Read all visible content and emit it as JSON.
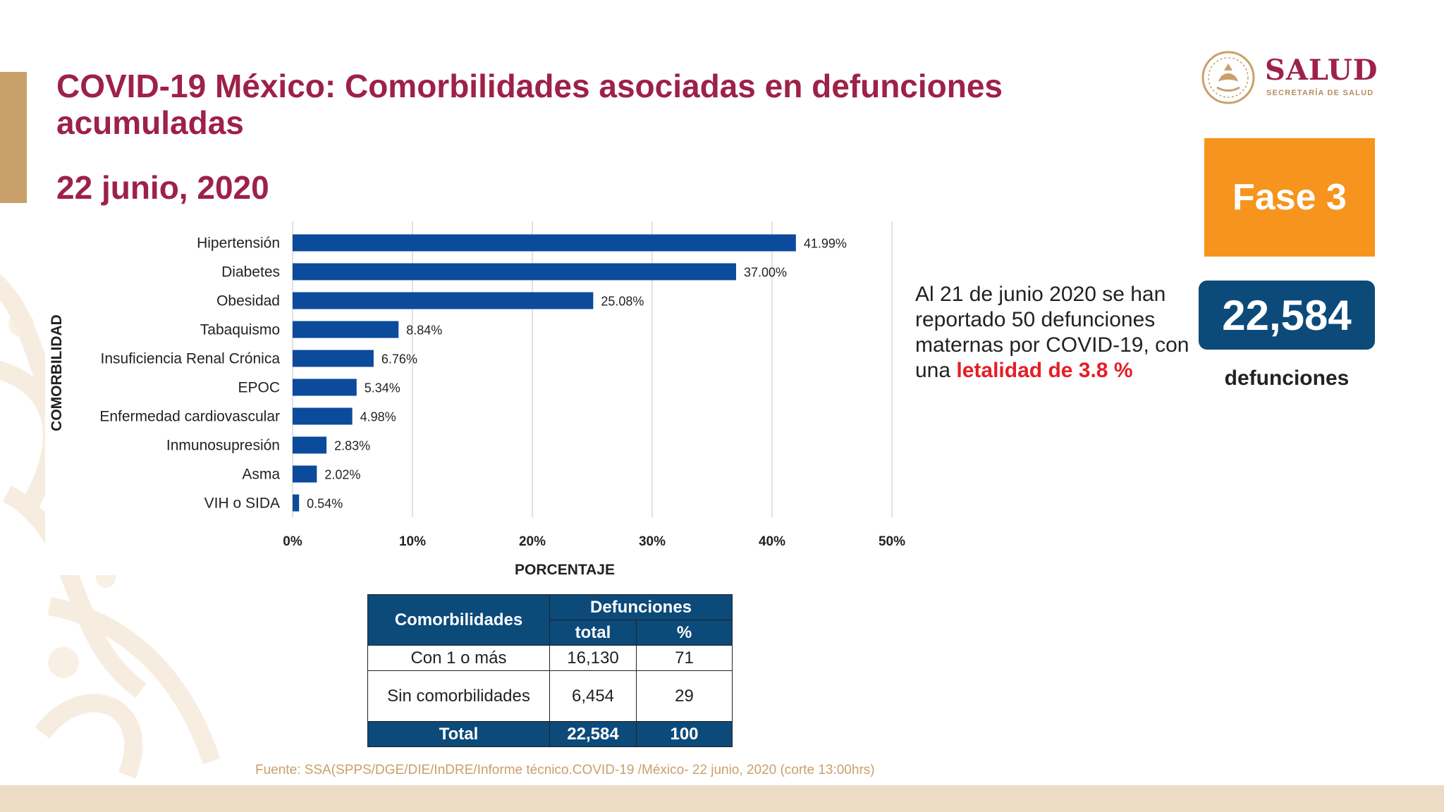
{
  "header": {
    "title": "COVID-19 México: Comorbilidades asociadas en defunciones acumuladas",
    "date": "22 junio, 2020"
  },
  "logo": {
    "word": "SALUD",
    "subtitle": "SECRETARÍA DE SALUD"
  },
  "phase": {
    "label": "Fase 3"
  },
  "deaths": {
    "value": "22,584",
    "label": "defunciones"
  },
  "maternal": {
    "text": "Al 21 de junio 2020 se han reportado 50 defunciones maternas por COVID-19, con una",
    "highlight": "letalidad de 3.8 %"
  },
  "chart_data": {
    "type": "bar",
    "orientation": "horizontal",
    "categories": [
      "Hipertensión",
      "Diabetes",
      "Obesidad",
      "Tabaquismo",
      "Insuficiencia Renal Crónica",
      "EPOC",
      "Enfermedad cardiovascular",
      "Inmunosupresión",
      "Asma",
      "VIH o SIDA"
    ],
    "values": [
      41.99,
      37.0,
      25.08,
      8.84,
      6.76,
      5.34,
      4.98,
      2.83,
      2.02,
      0.54
    ],
    "value_labels": [
      "41.99%",
      "37.00%",
      "25.08%",
      "8.84%",
      "6.76%",
      "5.34%",
      "4.98%",
      "2.83%",
      "2.02%",
      "0.54%"
    ],
    "xlabel": "PORCENTAJE",
    "ylabel": "COMORBILIDAD",
    "xlim": [
      0,
      50
    ],
    "xticks": [
      0,
      10,
      20,
      30,
      40,
      50
    ],
    "xtick_labels": [
      "0%",
      "10%",
      "20%",
      "30%",
      "40%",
      "50%"
    ],
    "grid": "vertical",
    "bar_color": "#0c4a9c"
  },
  "table": {
    "col_comorbidities": "Comorbilidades",
    "col_deaths": "Defunciones",
    "sub_total": "total",
    "sub_pct": "%",
    "rows": [
      {
        "label": "Con 1 o más",
        "total": "16,130",
        "pct": "71"
      },
      {
        "label": "Sin comorbilidades",
        "total": "6,454",
        "pct": "29"
      }
    ],
    "total_row": {
      "label": "Total",
      "total": "22,584",
      "pct": "100"
    }
  },
  "source": "Fuente: SSA(SPPS/DGE/DIE/InDRE/Informe técnico.COVID-19 /México- 22 junio, 2020 (corte 13:00hrs)",
  "colors": {
    "title": "#9d2148",
    "accent_gold": "#c9a06a",
    "navy": "#0c4a7a",
    "orange": "#f7941d",
    "red": "#e51e25"
  }
}
